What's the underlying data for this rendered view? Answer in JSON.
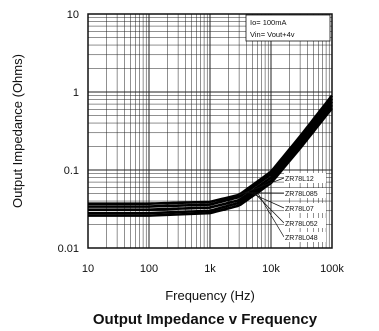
{
  "chart_data": {
    "type": "line",
    "title": "Output Impedance v Frequency",
    "xlabel": "Frequency (Hz)",
    "ylabel": "Output Impedance (Ohms)",
    "xscale": "log",
    "yscale": "log",
    "xlim": [
      10,
      100000
    ],
    "ylim": [
      0.01,
      10
    ],
    "grid": true,
    "x_ticks": [
      {
        "value": 10,
        "label": "10"
      },
      {
        "value": 100,
        "label": "100"
      },
      {
        "value": 1000,
        "label": "1k"
      },
      {
        "value": 10000,
        "label": "10k"
      },
      {
        "value": 100000,
        "label": "100k"
      }
    ],
    "y_ticks": [
      {
        "value": 0.01,
        "label": "0.01"
      },
      {
        "value": 0.1,
        "label": "0.1"
      },
      {
        "value": 1,
        "label": "1"
      },
      {
        "value": 10,
        "label": "10"
      }
    ],
    "annotations": [
      "Io= 100mA",
      "Vin= Vout+4v"
    ],
    "x": [
      10,
      100,
      1000,
      3000,
      10000,
      30000,
      100000
    ],
    "series": [
      {
        "name": "ZR78L12",
        "values": [
          0.037,
          0.037,
          0.039,
          0.048,
          0.095,
          0.27,
          0.9
        ]
      },
      {
        "name": "ZR78L085",
        "values": [
          0.034,
          0.034,
          0.036,
          0.045,
          0.088,
          0.25,
          0.82
        ]
      },
      {
        "name": "ZR78L07",
        "values": [
          0.031,
          0.031,
          0.033,
          0.041,
          0.08,
          0.23,
          0.75
        ]
      },
      {
        "name": "ZR78L052",
        "values": [
          0.028,
          0.028,
          0.03,
          0.038,
          0.073,
          0.21,
          0.68
        ]
      },
      {
        "name": "ZR78L048",
        "values": [
          0.026,
          0.026,
          0.028,
          0.035,
          0.068,
          0.19,
          0.62
        ]
      }
    ]
  }
}
